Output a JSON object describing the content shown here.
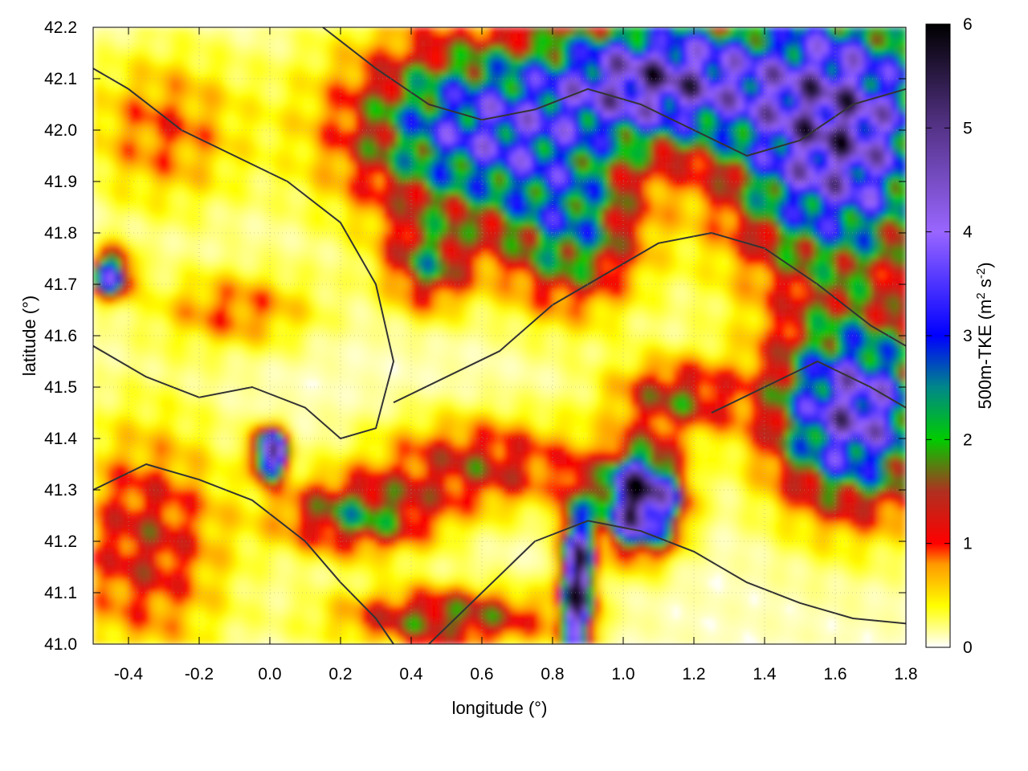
{
  "chart_data": {
    "type": "heatmap",
    "title": "",
    "xlabel": "longitude (°)",
    "ylabel": "latitude (°)",
    "xlim": [
      -0.5,
      1.8
    ],
    "ylim": [
      41.0,
      42.2
    ],
    "x_ticks": [
      -0.4,
      -0.2,
      0.0,
      0.2,
      0.4,
      0.6,
      0.8,
      1.0,
      1.2,
      1.4,
      1.6,
      1.8
    ],
    "x_tick_labels": [
      "-0.4",
      "-0.2",
      "0.0",
      "0.2",
      "0.4",
      "0.6",
      "0.8",
      "1.0",
      "1.2",
      "1.4",
      "1.6",
      "1.8"
    ],
    "y_ticks": [
      41.0,
      41.1,
      41.2,
      41.3,
      41.4,
      41.5,
      41.6,
      41.7,
      41.8,
      41.9,
      42.0,
      42.1,
      42.2
    ],
    "y_tick_labels": [
      "41.0",
      "41.1",
      "41.2",
      "41.3",
      "41.4",
      "41.5",
      "41.6",
      "41.7",
      "41.8",
      "41.9",
      "42.0",
      "42.1",
      "42.2"
    ],
    "grid": true,
    "colorbar": {
      "label_parts": [
        "500m-TKE (m",
        "2",
        " s",
        "-2",
        ")"
      ],
      "range": [
        0,
        6
      ],
      "ticks": [
        0,
        1,
        2,
        3,
        4,
        5,
        6
      ],
      "tick_labels": [
        "0",
        "1",
        "2",
        "3",
        "4",
        "5",
        "6"
      ],
      "stops": [
        {
          "value": 0.0,
          "color": "#ffffff"
        },
        {
          "value": 0.4,
          "color": "#ffff00"
        },
        {
          "value": 0.8,
          "color": "#ff9900"
        },
        {
          "value": 1.0,
          "color": "#ff0000"
        },
        {
          "value": 1.5,
          "color": "#b03020"
        },
        {
          "value": 2.0,
          "color": "#00cc00"
        },
        {
          "value": 2.5,
          "color": "#008888"
        },
        {
          "value": 3.0,
          "color": "#0000ff"
        },
        {
          "value": 4.0,
          "color": "#9966ff"
        },
        {
          "value": 5.0,
          "color": "#553388"
        },
        {
          "value": 6.0,
          "color": "#000000"
        }
      ]
    },
    "tke_field_blobs": [
      {
        "lon": 1.05,
        "lat": 41.28,
        "sx": 0.07,
        "sy": 0.06,
        "v": 6.5
      },
      {
        "lon": 0.87,
        "lat": 41.12,
        "sx": 0.03,
        "sy": 0.1,
        "v": 6.0
      },
      {
        "lon": 0.0,
        "lat": 41.37,
        "sx": 0.03,
        "sy": 0.03,
        "v": 5.8
      },
      {
        "lon": 1.65,
        "lat": 41.45,
        "sx": 0.15,
        "sy": 0.12,
        "v": 4.5
      },
      {
        "lon": 1.6,
        "lat": 42.0,
        "sx": 0.2,
        "sy": 0.18,
        "v": 5.0
      },
      {
        "lon": 1.1,
        "lat": 42.1,
        "sx": 0.2,
        "sy": 0.08,
        "v": 4.5
      },
      {
        "lon": 0.6,
        "lat": 42.0,
        "sx": 0.25,
        "sy": 0.12,
        "v": 3.5
      },
      {
        "lon": 0.85,
        "lat": 41.8,
        "sx": 0.13,
        "sy": 0.1,
        "v": 2.2
      },
      {
        "lon": 0.45,
        "lat": 41.74,
        "sx": 0.08,
        "sy": 0.06,
        "v": 1.8
      },
      {
        "lon": 0.6,
        "lat": 41.35,
        "sx": 0.2,
        "sy": 0.06,
        "v": 1.4
      },
      {
        "lon": 1.15,
        "lat": 41.48,
        "sx": 0.12,
        "sy": 0.05,
        "v": 1.6
      },
      {
        "lon": 0.25,
        "lat": 41.25,
        "sx": 0.15,
        "sy": 0.05,
        "v": 2.0
      },
      {
        "lon": -0.35,
        "lat": 41.2,
        "sx": 0.15,
        "sy": 0.15,
        "v": 1.3
      },
      {
        "lon": -0.3,
        "lat": 42.0,
        "sx": 0.15,
        "sy": 0.1,
        "v": 0.9
      },
      {
        "lon": -0.1,
        "lat": 41.65,
        "sx": 0.15,
        "sy": 0.05,
        "v": 0.9
      },
      {
        "lon": 0.5,
        "lat": 41.05,
        "sx": 0.2,
        "sy": 0.04,
        "v": 1.8
      },
      {
        "lon": -0.45,
        "lat": 41.72,
        "sx": 0.04,
        "sy": 0.03,
        "v": 3.5
      }
    ],
    "terrain_contours": [
      {
        "name": "contour-basin-west",
        "points": [
          [
            -0.5,
            41.58
          ],
          [
            -0.35,
            41.52
          ],
          [
            -0.2,
            41.48
          ],
          [
            -0.05,
            41.5
          ],
          [
            0.1,
            41.46
          ],
          [
            0.2,
            41.4
          ],
          [
            0.3,
            41.42
          ],
          [
            0.35,
            41.55
          ],
          [
            0.3,
            41.7
          ],
          [
            0.2,
            41.82
          ],
          [
            0.05,
            41.9
          ],
          [
            -0.1,
            41.95
          ],
          [
            -0.25,
            42.0
          ],
          [
            -0.4,
            42.08
          ],
          [
            -0.5,
            42.12
          ]
        ]
      },
      {
        "name": "contour-basin-central",
        "points": [
          [
            0.35,
            41.47
          ],
          [
            0.5,
            41.52
          ],
          [
            0.65,
            41.57
          ],
          [
            0.8,
            41.66
          ],
          [
            0.95,
            41.72
          ],
          [
            1.1,
            41.78
          ],
          [
            1.25,
            41.8
          ],
          [
            1.4,
            41.77
          ],
          [
            1.55,
            41.7
          ],
          [
            1.7,
            41.62
          ],
          [
            1.8,
            41.58
          ]
        ]
      },
      {
        "name": "contour-ridge-north",
        "points": [
          [
            0.15,
            42.2
          ],
          [
            0.3,
            42.12
          ],
          [
            0.45,
            42.05
          ],
          [
            0.6,
            42.02
          ],
          [
            0.75,
            42.04
          ],
          [
            0.9,
            42.08
          ],
          [
            1.05,
            42.05
          ],
          [
            1.2,
            42.0
          ],
          [
            1.35,
            41.95
          ],
          [
            1.5,
            41.98
          ],
          [
            1.65,
            42.05
          ],
          [
            1.8,
            42.08
          ]
        ]
      },
      {
        "name": "contour-coast-south",
        "points": [
          [
            0.45,
            41.0
          ],
          [
            0.6,
            41.1
          ],
          [
            0.75,
            41.2
          ],
          [
            0.9,
            41.24
          ],
          [
            1.05,
            41.22
          ],
          [
            1.2,
            41.18
          ],
          [
            1.35,
            41.12
          ],
          [
            1.5,
            41.08
          ],
          [
            1.65,
            41.05
          ],
          [
            1.8,
            41.04
          ]
        ]
      },
      {
        "name": "contour-valley-sw",
        "points": [
          [
            -0.5,
            41.3
          ],
          [
            -0.35,
            41.35
          ],
          [
            -0.2,
            41.32
          ],
          [
            -0.05,
            41.28
          ],
          [
            0.1,
            41.2
          ],
          [
            0.2,
            41.12
          ],
          [
            0.3,
            41.05
          ],
          [
            0.35,
            41.0
          ]
        ]
      },
      {
        "name": "contour-hills-east",
        "points": [
          [
            1.25,
            41.45
          ],
          [
            1.4,
            41.5
          ],
          [
            1.55,
            41.55
          ],
          [
            1.7,
            41.5
          ],
          [
            1.8,
            41.46
          ]
        ]
      }
    ]
  }
}
